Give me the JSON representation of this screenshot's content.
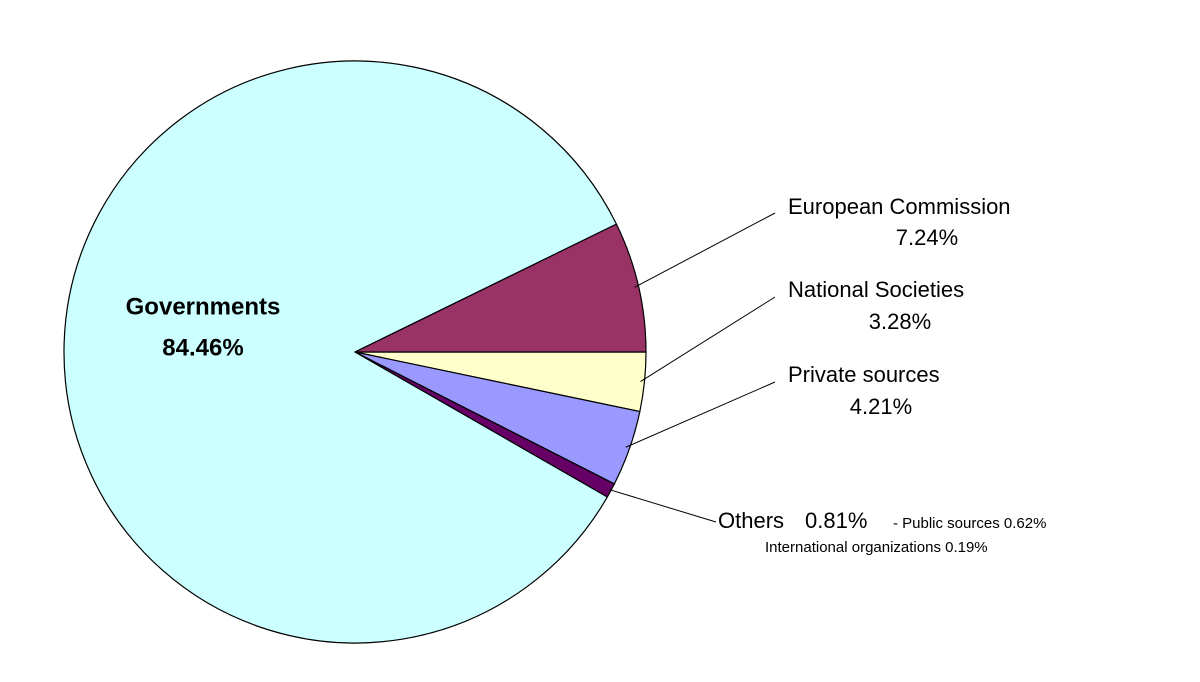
{
  "chart_data": {
    "type": "pie",
    "categories": [
      "National Societies",
      "Private sources",
      "Others",
      "Governments",
      "European Commission"
    ],
    "values": [
      3.28,
      4.21,
      0.81,
      84.46,
      7.24
    ],
    "value_labels": [
      "3.28%",
      "4.21%",
      "0.81%",
      "84.46%",
      "7.24%"
    ],
    "colors": [
      "#ffffcc",
      "#9999ff",
      "#660066",
      "#ccffff",
      "#993366"
    ],
    "annotations": [
      "- Public sources 0.62%",
      "International organizations 0.19%"
    ]
  }
}
